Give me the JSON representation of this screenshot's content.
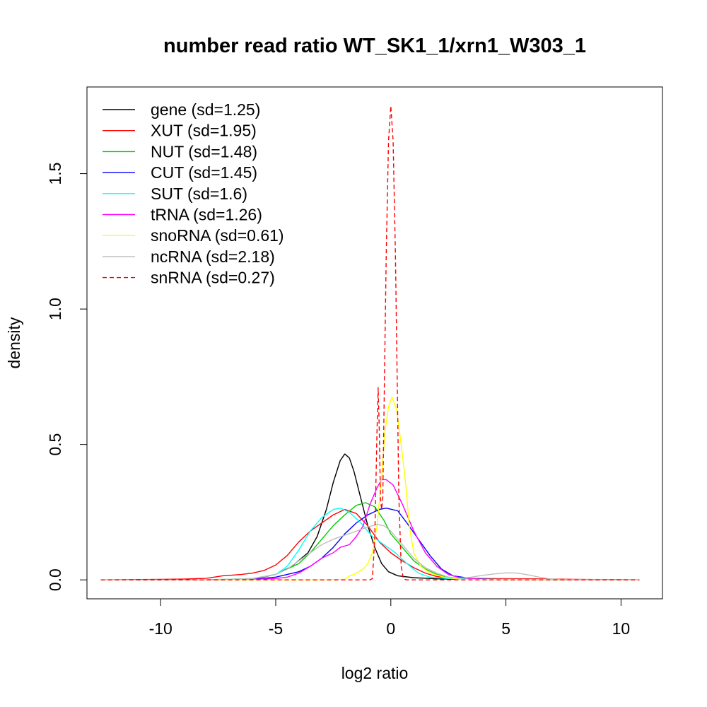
{
  "chart_data": {
    "type": "line",
    "title": "number read ratio WT_SK1_1/xrn1_W303_1",
    "xlabel": "log2 ratio",
    "ylabel": "density",
    "xlim": [
      -13.2,
      11.8
    ],
    "ylim": [
      -0.07,
      1.82
    ],
    "x_ticks": [
      -10,
      -5,
      0,
      5,
      10
    ],
    "x_tick_labels": [
      "-10",
      "-5",
      "0",
      "5",
      "10"
    ],
    "y_ticks": [
      0.0,
      0.5,
      1.0,
      1.5
    ],
    "y_tick_labels": [
      "0.0",
      "0.5",
      "1.0",
      "1.5"
    ],
    "grid": false,
    "legend_position": "top-left",
    "series": [
      {
        "name": "gene (sd=1.25)",
        "color": "#000000",
        "dash": "solid",
        "points": [
          [
            -12.6,
            0
          ],
          [
            -8,
            0
          ],
          [
            -6,
            0.003
          ],
          [
            -5,
            0.02
          ],
          [
            -4.3,
            0.05
          ],
          [
            -3.6,
            0.1
          ],
          [
            -3.2,
            0.16
          ],
          [
            -2.8,
            0.26
          ],
          [
            -2.5,
            0.36
          ],
          [
            -2.2,
            0.44
          ],
          [
            -2.0,
            0.465
          ],
          [
            -1.8,
            0.45
          ],
          [
            -1.6,
            0.4
          ],
          [
            -1.3,
            0.3
          ],
          [
            -1.0,
            0.2
          ],
          [
            -0.7,
            0.12
          ],
          [
            -0.4,
            0.06
          ],
          [
            -0.1,
            0.03
          ],
          [
            0.3,
            0.015
          ],
          [
            1,
            0.008
          ],
          [
            2,
            0.004
          ],
          [
            3,
            0.002
          ],
          [
            5,
            0.004
          ],
          [
            7,
            0.001
          ],
          [
            10.8,
            0
          ]
        ]
      },
      {
        "name": "XUT (sd=1.95)",
        "color": "#ff0000",
        "dash": "solid",
        "points": [
          [
            -12.6,
            0
          ],
          [
            -10,
            0.002
          ],
          [
            -9,
            0.003
          ],
          [
            -8,
            0.006
          ],
          [
            -7.3,
            0.015
          ],
          [
            -6.5,
            0.02
          ],
          [
            -6,
            0.025
          ],
          [
            -5.5,
            0.035
          ],
          [
            -5,
            0.055
          ],
          [
            -4.5,
            0.09
          ],
          [
            -4,
            0.14
          ],
          [
            -3.5,
            0.18
          ],
          [
            -3,
            0.21
          ],
          [
            -2.5,
            0.24
          ],
          [
            -2.0,
            0.26
          ],
          [
            -1.5,
            0.245
          ],
          [
            -1.0,
            0.2
          ],
          [
            -0.5,
            0.14
          ],
          [
            0,
            0.1
          ],
          [
            0.5,
            0.07
          ],
          [
            1,
            0.045
          ],
          [
            1.5,
            0.025
          ],
          [
            2,
            0.012
          ],
          [
            3,
            0.006
          ],
          [
            4,
            0.005
          ],
          [
            6,
            0.004
          ],
          [
            8,
            0.002
          ],
          [
            10.8,
            0
          ]
        ]
      },
      {
        "name": "NUT (sd=1.48)",
        "color": "#00cd00",
        "dash": "solid",
        "points": [
          [
            -12.6,
            0
          ],
          [
            -8,
            0
          ],
          [
            -6,
            0.005
          ],
          [
            -5,
            0.02
          ],
          [
            -4,
            0.06
          ],
          [
            -3.5,
            0.1
          ],
          [
            -3,
            0.15
          ],
          [
            -2.5,
            0.2
          ],
          [
            -2,
            0.24
          ],
          [
            -1.5,
            0.275
          ],
          [
            -1.1,
            0.285
          ],
          [
            -0.7,
            0.27
          ],
          [
            -0.3,
            0.22
          ],
          [
            0,
            0.17
          ],
          [
            0.5,
            0.12
          ],
          [
            1,
            0.07
          ],
          [
            1.5,
            0.04
          ],
          [
            2,
            0.02
          ],
          [
            2.5,
            0.01
          ],
          [
            3,
            0.004
          ],
          [
            4,
            0.001
          ],
          [
            10.8,
            0
          ]
        ]
      },
      {
        "name": "CUT (sd=1.45)",
        "color": "#0000ff",
        "dash": "solid",
        "points": [
          [
            -12.6,
            0
          ],
          [
            -8,
            0
          ],
          [
            -6,
            0.002
          ],
          [
            -5,
            0.01
          ],
          [
            -4,
            0.03
          ],
          [
            -3.5,
            0.05
          ],
          [
            -3,
            0.08
          ],
          [
            -2.5,
            0.12
          ],
          [
            -2,
            0.17
          ],
          [
            -1.5,
            0.21
          ],
          [
            -1,
            0.24
          ],
          [
            -0.5,
            0.26
          ],
          [
            -0.2,
            0.265
          ],
          [
            0.3,
            0.255
          ],
          [
            0.7,
            0.21
          ],
          [
            1.2,
            0.15
          ],
          [
            1.7,
            0.09
          ],
          [
            2.2,
            0.04
          ],
          [
            2.7,
            0.015
          ],
          [
            3.5,
            0.005
          ],
          [
            5,
            0.001
          ],
          [
            10.8,
            0
          ]
        ]
      },
      {
        "name": "SUT (sd=1.6)",
        "color": "#00ffff",
        "dash": "solid",
        "points": [
          [
            -12.6,
            0
          ],
          [
            -8,
            0
          ],
          [
            -6,
            0.005
          ],
          [
            -5,
            0.02
          ],
          [
            -4.5,
            0.05
          ],
          [
            -4,
            0.11
          ],
          [
            -3.5,
            0.18
          ],
          [
            -3.0,
            0.23
          ],
          [
            -2.5,
            0.26
          ],
          [
            -2.2,
            0.265
          ],
          [
            -1.8,
            0.25
          ],
          [
            -1.3,
            0.21
          ],
          [
            -0.8,
            0.16
          ],
          [
            -0.3,
            0.13
          ],
          [
            0.2,
            0.1
          ],
          [
            0.7,
            0.06
          ],
          [
            1.2,
            0.025
          ],
          [
            1.7,
            0.01
          ],
          [
            2.5,
            0.005
          ],
          [
            4,
            0.002
          ],
          [
            10.8,
            0
          ]
        ]
      },
      {
        "name": "tRNA (sd=1.26)",
        "color": "#ff00ff",
        "dash": "solid",
        "points": [
          [
            -12.6,
            0
          ],
          [
            -8,
            0
          ],
          [
            -6,
            0.002
          ],
          [
            -5,
            0.005
          ],
          [
            -4.5,
            0.01
          ],
          [
            -4,
            0.025
          ],
          [
            -3.5,
            0.05
          ],
          [
            -3,
            0.08
          ],
          [
            -2.5,
            0.1
          ],
          [
            -2.2,
            0.12
          ],
          [
            -1.8,
            0.13
          ],
          [
            -1.5,
            0.16
          ],
          [
            -1.2,
            0.2
          ],
          [
            -0.9,
            0.28
          ],
          [
            -0.6,
            0.34
          ],
          [
            -0.4,
            0.37
          ],
          [
            -0.2,
            0.37
          ],
          [
            0.1,
            0.35
          ],
          [
            0.5,
            0.28
          ],
          [
            1,
            0.18
          ],
          [
            1.5,
            0.1
          ],
          [
            2,
            0.05
          ],
          [
            2.5,
            0.02
          ],
          [
            3,
            0.008
          ],
          [
            4,
            0.002
          ],
          [
            10.8,
            0
          ]
        ]
      },
      {
        "name": "snoRNA (sd=0.61)",
        "color": "#ffff00",
        "dash": "solid",
        "points": [
          [
            -12.6,
            0
          ],
          [
            -3,
            0
          ],
          [
            -2,
            0.002
          ],
          [
            -1.8,
            0.015
          ],
          [
            -1.6,
            0.02
          ],
          [
            -1.4,
            0.03
          ],
          [
            -1.2,
            0.04
          ],
          [
            -1.0,
            0.06
          ],
          [
            -0.8,
            0.1
          ],
          [
            -0.6,
            0.2
          ],
          [
            -0.4,
            0.38
          ],
          [
            -0.25,
            0.55
          ],
          [
            -0.1,
            0.64
          ],
          [
            0.05,
            0.675
          ],
          [
            0.25,
            0.63
          ],
          [
            0.45,
            0.5
          ],
          [
            0.65,
            0.35
          ],
          [
            0.8,
            0.2
          ],
          [
            1.0,
            0.1
          ],
          [
            1.3,
            0.05
          ],
          [
            1.7,
            0.025
          ],
          [
            2.3,
            0.01
          ],
          [
            3,
            0.002
          ],
          [
            10.8,
            0
          ]
        ]
      },
      {
        "name": "ncRNA (sd=2.18)",
        "color": "#bebebe",
        "dash": "solid",
        "points": [
          [
            -12.6,
            0
          ],
          [
            -8,
            0
          ],
          [
            -6,
            0.005
          ],
          [
            -5,
            0.02
          ],
          [
            -4.5,
            0.04
          ],
          [
            -4,
            0.07
          ],
          [
            -3.5,
            0.1
          ],
          [
            -3,
            0.13
          ],
          [
            -2.5,
            0.15
          ],
          [
            -2,
            0.165
          ],
          [
            -1.5,
            0.18
          ],
          [
            -1,
            0.195
          ],
          [
            -0.6,
            0.205
          ],
          [
            -0.3,
            0.2
          ],
          [
            0,
            0.18
          ],
          [
            0.5,
            0.13
          ],
          [
            1,
            0.08
          ],
          [
            1.5,
            0.045
          ],
          [
            2,
            0.025
          ],
          [
            2.5,
            0.01
          ],
          [
            3,
            0.006
          ],
          [
            3.5,
            0.01
          ],
          [
            4,
            0.017
          ],
          [
            4.5,
            0.022
          ],
          [
            5,
            0.026
          ],
          [
            5.5,
            0.025
          ],
          [
            6,
            0.018
          ],
          [
            6.5,
            0.009
          ],
          [
            7,
            0.003
          ],
          [
            7.5,
            0.001
          ],
          [
            10.8,
            0
          ]
        ]
      },
      {
        "name": "snRNA (sd=0.27)",
        "color": "#ff0000",
        "dash": "dashed",
        "points": [
          [
            -12.6,
            0
          ],
          [
            -0.9,
            0
          ],
          [
            -0.8,
            0.005
          ],
          [
            -0.7,
            0.15
          ],
          [
            -0.6,
            0.55
          ],
          [
            -0.55,
            0.71
          ],
          [
            -0.5,
            0.55
          ],
          [
            -0.45,
            0.3
          ],
          [
            -0.4,
            0.26
          ],
          [
            -0.35,
            0.3
          ],
          [
            -0.3,
            0.6
          ],
          [
            -0.2,
            1.2
          ],
          [
            -0.1,
            1.62
          ],
          [
            0,
            1.75
          ],
          [
            0.1,
            1.62
          ],
          [
            0.2,
            1.2
          ],
          [
            0.3,
            0.6
          ],
          [
            0.35,
            0.3
          ],
          [
            0.45,
            0.05
          ],
          [
            0.55,
            0.003
          ],
          [
            0.7,
            0
          ],
          [
            10.8,
            0
          ]
        ]
      }
    ]
  }
}
